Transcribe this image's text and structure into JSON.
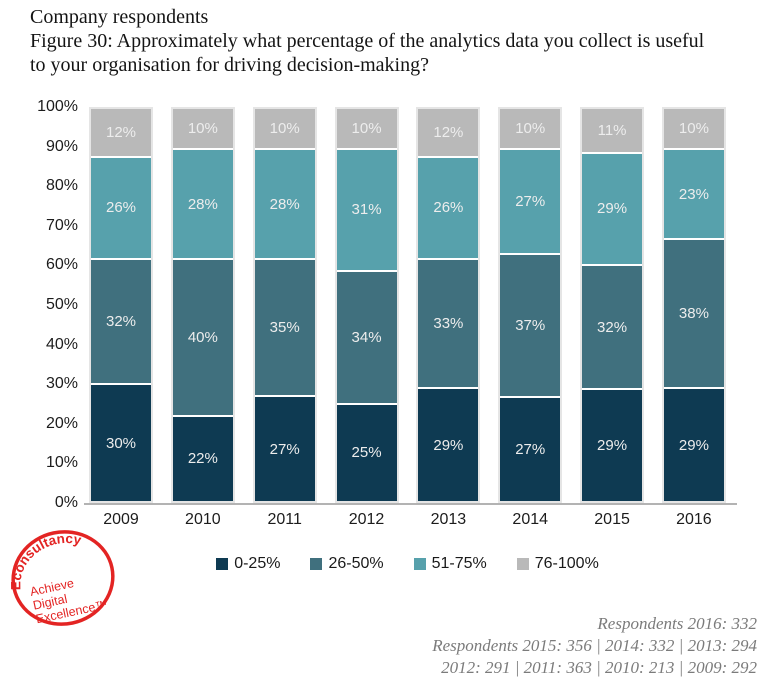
{
  "header": {
    "context_label": "Company respondents",
    "figure_title": "Figure 30: Approximately what percentage of the analytics data you collect is useful to your organisation for driving decision-making?"
  },
  "chart_data": {
    "type": "bar",
    "stacked": true,
    "categories": [
      "2009",
      "2010",
      "2011",
      "2012",
      "2013",
      "2014",
      "2015",
      "2016"
    ],
    "series": [
      {
        "name": "0-25%",
        "color": "#0e3a52",
        "values": [
          30,
          22,
          27,
          25,
          29,
          27,
          29,
          29
        ]
      },
      {
        "name": "26-50%",
        "color": "#40707e",
        "values": [
          32,
          40,
          35,
          34,
          33,
          37,
          32,
          38
        ]
      },
      {
        "name": "51-75%",
        "color": "#57a1ac",
        "values": [
          26,
          28,
          28,
          31,
          26,
          27,
          29,
          23
        ]
      },
      {
        "name": "76-100%",
        "color": "#b9b9b9",
        "values": [
          12,
          10,
          10,
          10,
          12,
          10,
          11,
          10
        ]
      }
    ],
    "yticks": [
      "0%",
      "10%",
      "20%",
      "30%",
      "40%",
      "50%",
      "60%",
      "70%",
      "80%",
      "90%",
      "100%"
    ],
    "ylim": [
      0,
      100
    ],
    "value_suffix": "%",
    "legend_position": "bottom",
    "grid": false
  },
  "logo": {
    "lines": [
      "Econsultancy",
      "Achieve",
      "Digital",
      "Excellence™"
    ],
    "color": "#e32423"
  },
  "footnotes": [
    "Respondents 2016: 332",
    "Respondents 2015: 356 | 2014: 332 | 2013: 294",
    "2012: 291 | 2011: 363 | 2010: 213 | 2009: 292"
  ]
}
